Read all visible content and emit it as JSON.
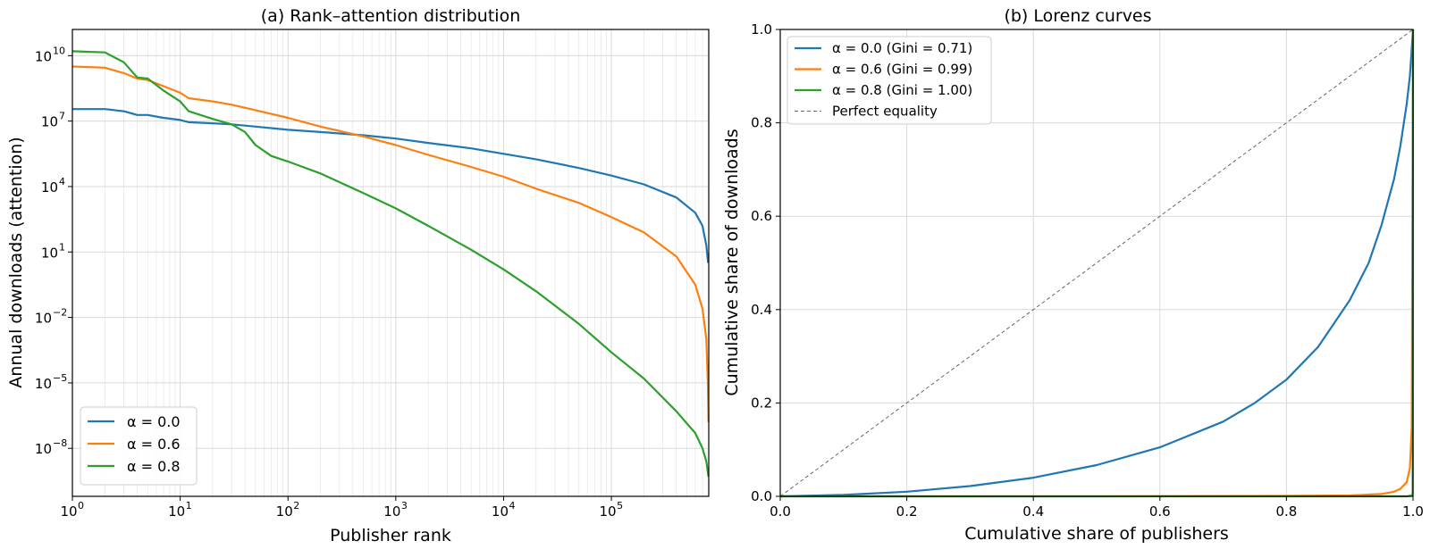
{
  "chart_data": [
    {
      "type": "line",
      "title": "(a) Rank–attention distribution",
      "xlabel": "Publisher rank",
      "ylabel": "Annual downloads (attention)",
      "xscale": "log",
      "yscale": "log",
      "xlim": [
        1,
        800000
      ],
      "ylim_exp": [
        -10.2,
        11.2
      ],
      "grid": true,
      "legend_position": "lower-left",
      "xticks": [
        {
          "exp": 0,
          "label": "10"
        },
        {
          "exp": 1,
          "label": "10"
        },
        {
          "exp": 2,
          "label": "10"
        },
        {
          "exp": 3,
          "label": "10"
        },
        {
          "exp": 4,
          "label": "10"
        },
        {
          "exp": 5,
          "label": "10"
        }
      ],
      "yticks": [
        {
          "exp": 10,
          "label": "10",
          "sup": "10"
        },
        {
          "exp": 7,
          "label": "10",
          "sup": "7"
        },
        {
          "exp": 4,
          "label": "10",
          "sup": "4"
        },
        {
          "exp": 1,
          "label": "10",
          "sup": "1"
        },
        {
          "exp": -2,
          "label": "10",
          "sup": "−2"
        },
        {
          "exp": -5,
          "label": "10",
          "sup": "−5"
        },
        {
          "exp": -8,
          "label": "10",
          "sup": "−8"
        }
      ],
      "xtick_sups": [
        "0",
        "1",
        "2",
        "3",
        "4",
        "5"
      ],
      "series": [
        {
          "name": "α = 0.0",
          "color": "#1f77b4",
          "x": [
            1,
            2,
            3,
            4,
            5,
            7,
            10,
            12,
            20,
            30,
            50,
            100,
            200,
            500,
            1000,
            2000,
            5000,
            10000,
            20000,
            50000,
            100000,
            200000,
            400000,
            600000,
            700000,
            760000,
            790000
          ],
          "log10_y": [
            7.55,
            7.55,
            7.45,
            7.28,
            7.28,
            7.15,
            7.05,
            6.95,
            6.9,
            6.85,
            6.75,
            6.6,
            6.5,
            6.35,
            6.2,
            6.0,
            5.75,
            5.5,
            5.25,
            4.85,
            4.5,
            4.1,
            3.5,
            2.8,
            2.2,
            1.3,
            0.5
          ]
        },
        {
          "name": "α = 0.6",
          "color": "#ff7f0e",
          "x": [
            1,
            2,
            3,
            4,
            5,
            7,
            10,
            12,
            20,
            30,
            50,
            100,
            200,
            500,
            1000,
            2000,
            5000,
            10000,
            20000,
            50000,
            100000,
            200000,
            400000,
            600000,
            700000,
            760000,
            785000,
            795000
          ],
          "log10_y": [
            9.5,
            9.45,
            9.2,
            8.95,
            8.88,
            8.6,
            8.3,
            8.05,
            7.9,
            7.75,
            7.5,
            7.15,
            6.75,
            6.3,
            5.9,
            5.45,
            4.9,
            4.45,
            3.9,
            3.25,
            2.6,
            1.9,
            0.8,
            -0.5,
            -1.6,
            -3.0,
            -5.0,
            -6.8
          ]
        },
        {
          "name": "α = 0.8",
          "color": "#2ca02c",
          "x": [
            1,
            2,
            3,
            4,
            5,
            7,
            10,
            12,
            20,
            30,
            40,
            50,
            70,
            100,
            200,
            500,
            1000,
            2000,
            5000,
            10000,
            20000,
            50000,
            100000,
            200000,
            400000,
            600000,
            700000,
            760000,
            795000
          ],
          "log10_y": [
            10.2,
            10.15,
            9.7,
            9.0,
            8.95,
            8.4,
            7.9,
            7.45,
            7.1,
            6.85,
            6.5,
            5.9,
            5.4,
            5.15,
            4.6,
            3.7,
            3.0,
            2.2,
            1.1,
            0.2,
            -0.8,
            -2.3,
            -3.6,
            -4.8,
            -6.3,
            -7.3,
            -8.0,
            -8.6,
            -9.3
          ]
        }
      ]
    },
    {
      "type": "line",
      "title": "(b) Lorenz curves",
      "xlabel": "Cumulative share of publishers",
      "ylabel": "Cumulative share of downloads",
      "xlim": [
        0,
        1
      ],
      "ylim": [
        0,
        1
      ],
      "grid": true,
      "legend_position": "top-left",
      "xticks": [
        "0.0",
        "0.2",
        "0.4",
        "0.6",
        "0.8",
        "1.0"
      ],
      "yticks": [
        "0.0",
        "0.2",
        "0.4",
        "0.6",
        "0.8",
        "1.0"
      ],
      "series": [
        {
          "name": "α = 0.0 (Gini = 0.71)",
          "color": "#1f77b4",
          "x": [
            0,
            0.1,
            0.2,
            0.3,
            0.4,
            0.5,
            0.6,
            0.7,
            0.75,
            0.8,
            0.85,
            0.9,
            0.93,
            0.95,
            0.97,
            0.98,
            0.99,
            0.995,
            1.0
          ],
          "y": [
            0,
            0.003,
            0.01,
            0.022,
            0.04,
            0.067,
            0.105,
            0.16,
            0.2,
            0.25,
            0.32,
            0.42,
            0.5,
            0.58,
            0.68,
            0.75,
            0.84,
            0.9,
            1.0
          ]
        },
        {
          "name": "α = 0.6 (Gini = 0.99)",
          "color": "#ff7f0e",
          "x": [
            0,
            0.5,
            0.8,
            0.9,
            0.95,
            0.97,
            0.98,
            0.99,
            0.995,
            0.998,
            1.0
          ],
          "y": [
            0,
            0.0,
            0.001,
            0.002,
            0.005,
            0.01,
            0.016,
            0.03,
            0.06,
            0.15,
            1.0
          ]
        },
        {
          "name": "α = 0.8 (Gini = 1.00)",
          "color": "#2ca02c",
          "x": [
            0,
            0.9,
            0.99,
            0.999,
            0.9995,
            1.0
          ],
          "y": [
            0,
            0.0,
            0.0,
            0.002,
            0.01,
            1.0
          ]
        },
        {
          "name": "Perfect equality",
          "color": "#666666",
          "dashed": true,
          "x": [
            0,
            1
          ],
          "y": [
            0,
            1
          ]
        }
      ]
    }
  ]
}
